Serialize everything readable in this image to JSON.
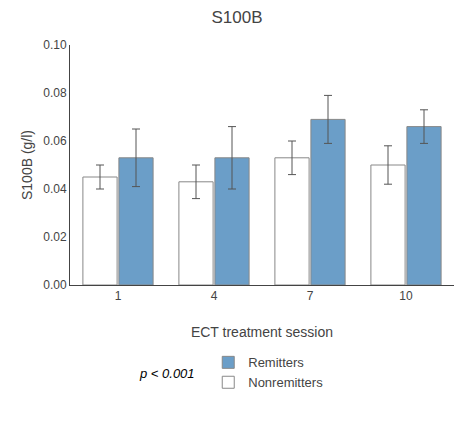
{
  "chart_data": {
    "type": "bar",
    "title": "S100B",
    "x_label": "ECT treatment session",
    "y_label": "S100B (g/l)",
    "categories": [
      "1",
      "4",
      "7",
      "10"
    ],
    "series": [
      {
        "name": "Nonremitters",
        "color": "#ffffff",
        "values": [
          0.045,
          0.043,
          0.053,
          0.05
        ],
        "errors": [
          0.005,
          0.007,
          0.007,
          0.008
        ]
      },
      {
        "name": "Remitters",
        "color": "#6b9ec8",
        "values": [
          0.053,
          0.053,
          0.069,
          0.066
        ],
        "errors": [
          0.012,
          0.013,
          0.01,
          0.007
        ]
      }
    ],
    "ylim": [
      0.0,
      0.1
    ],
    "yticks": [
      {
        "value": 0.0,
        "label": "0.00"
      },
      {
        "value": 0.02,
        "label": "0.02"
      },
      {
        "value": 0.04,
        "label": "0.04"
      },
      {
        "value": 0.06,
        "label": "0.06"
      },
      {
        "value": 0.08,
        "label": "0.08"
      },
      {
        "value": 0.1,
        "label": "0.10"
      }
    ],
    "annotation": "p < 0.001",
    "legend": "bottom",
    "grid": false
  }
}
